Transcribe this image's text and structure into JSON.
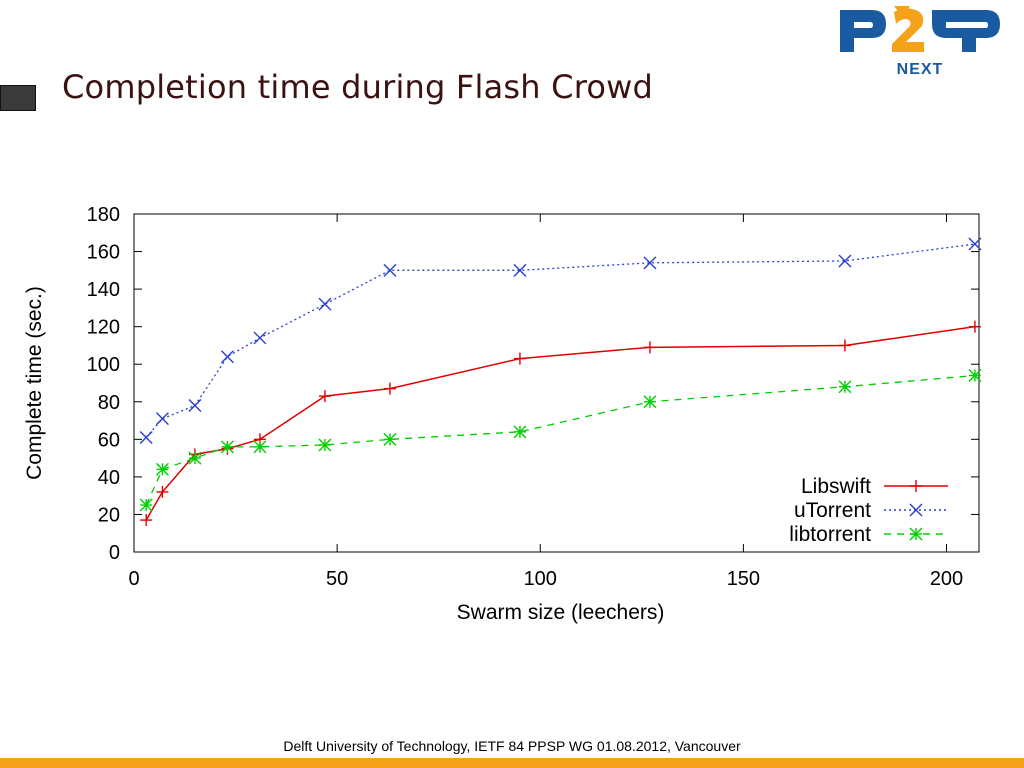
{
  "slide": {
    "title": "Completion time during Flash Crowd",
    "footer": "Delft University of Technology, IETF 84 PPSP WG  01.08.2012, Vancouver",
    "logo": {
      "main": "P2P",
      "sub": "NEXT",
      "blue": "#1a5aa0",
      "orange": "#f5a21a"
    },
    "footer_bar_color": "#f5a21a"
  },
  "chart_data": {
    "type": "line",
    "title": "",
    "xlabel": "Swarm size (leechers)",
    "ylabel": "Complete time (sec.)",
    "xlim": [
      0,
      208
    ],
    "ylim": [
      0,
      180
    ],
    "xticks": [
      0,
      50,
      100,
      150,
      200
    ],
    "yticks": [
      0,
      20,
      40,
      60,
      80,
      100,
      120,
      140,
      160,
      180
    ],
    "grid": false,
    "legend_position": "bottom-right",
    "series": [
      {
        "name": "Libswift",
        "color": "#e00000",
        "dash": "solid",
        "marker": "plus",
        "x": [
          3,
          7,
          15,
          23,
          31,
          47,
          63,
          95,
          127,
          175,
          207
        ],
        "y": [
          17,
          32,
          52,
          55,
          60,
          83,
          87,
          103,
          109,
          110,
          120
        ]
      },
      {
        "name": "uTorrent",
        "color": "#2a3fcf",
        "dash": "dotted",
        "marker": "x",
        "x": [
          3,
          7,
          15,
          23,
          31,
          47,
          63,
          95,
          127,
          175,
          207
        ],
        "y": [
          61,
          71,
          78,
          104,
          114,
          132,
          150,
          150,
          154,
          155,
          164
        ]
      },
      {
        "name": "libtorrent",
        "color": "#00d000",
        "dash": "dashed",
        "marker": "star",
        "x": [
          3,
          7,
          15,
          23,
          31,
          47,
          63,
          95,
          127,
          175,
          207
        ],
        "y": [
          25,
          44,
          50,
          56,
          56,
          57,
          60,
          64,
          80,
          88,
          94
        ]
      }
    ]
  }
}
